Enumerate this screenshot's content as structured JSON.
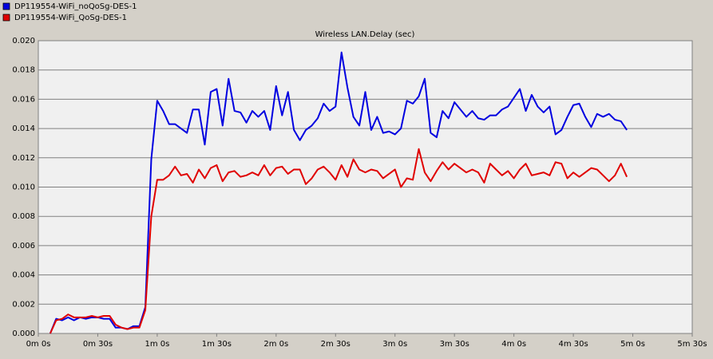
{
  "chart_data": {
    "type": "line",
    "title": "Wireless LAN.Delay (sec)",
    "x": [
      6,
      9,
      12,
      15,
      18,
      21,
      24,
      27,
      30,
      33,
      36,
      39,
      42,
      45,
      48,
      51,
      54,
      57,
      60,
      63,
      66,
      69,
      72,
      75,
      78,
      81,
      84,
      87,
      90,
      93,
      96,
      99,
      102,
      105,
      108,
      111,
      114,
      117,
      120,
      123,
      126,
      129,
      132,
      135,
      138,
      141,
      144,
      147,
      150,
      153,
      156,
      159,
      162,
      165,
      168,
      171,
      174,
      177,
      180,
      183,
      186,
      189,
      192,
      195,
      198,
      201,
      204,
      207,
      210,
      213,
      216,
      219,
      222,
      225,
      228,
      231,
      234,
      237,
      240,
      243,
      246,
      249,
      252,
      255,
      258,
      261,
      264,
      267,
      270,
      273,
      276,
      279,
      282,
      285,
      288,
      291,
      294,
      297
    ],
    "series": [
      {
        "name": "DP119554-WiFi_noQoSg-DES-1",
        "color": "#0000e0",
        "values": [
          0.0,
          0.001,
          0.0009,
          0.0011,
          0.0009,
          0.0011,
          0.001,
          0.0011,
          0.0011,
          0.001,
          0.001,
          0.0004,
          0.0004,
          0.0003,
          0.0005,
          0.0005,
          0.0018,
          0.0119,
          0.0159,
          0.0152,
          0.0143,
          0.0143,
          0.014,
          0.0137,
          0.0153,
          0.0153,
          0.0129,
          0.0165,
          0.0167,
          0.0142,
          0.0174,
          0.0152,
          0.0151,
          0.0144,
          0.0152,
          0.0148,
          0.0152,
          0.0139,
          0.0169,
          0.0149,
          0.0165,
          0.0139,
          0.0132,
          0.0139,
          0.0142,
          0.0147,
          0.0157,
          0.0152,
          0.0155,
          0.0192,
          0.0168,
          0.0148,
          0.0142,
          0.0165,
          0.0139,
          0.0148,
          0.0137,
          0.0138,
          0.0136,
          0.014,
          0.0159,
          0.0157,
          0.0162,
          0.0174,
          0.0137,
          0.0134,
          0.0152,
          0.0147,
          0.0158,
          0.0153,
          0.0148,
          0.0152,
          0.0147,
          0.0146,
          0.0149,
          0.0149,
          0.0153,
          0.0155,
          0.0161,
          0.0167,
          0.0152,
          0.0163,
          0.0155,
          0.0151,
          0.0155,
          0.0136,
          0.0139,
          0.0148,
          0.0156,
          0.0157,
          0.0148,
          0.0141,
          0.015,
          0.0148,
          0.015,
          0.0146,
          0.0145,
          0.0139
        ]
      },
      {
        "name": "DP119554-WiFi_QoSg-DES-1",
        "color": "#e00000",
        "values": [
          0.0,
          0.0009,
          0.001,
          0.0013,
          0.0011,
          0.0011,
          0.0011,
          0.0012,
          0.0011,
          0.0012,
          0.0012,
          0.0006,
          0.0004,
          0.0003,
          0.0004,
          0.0004,
          0.0016,
          0.008,
          0.0105,
          0.0105,
          0.0108,
          0.0114,
          0.0108,
          0.0109,
          0.0103,
          0.0112,
          0.0106,
          0.0113,
          0.0115,
          0.0104,
          0.011,
          0.0111,
          0.0107,
          0.0108,
          0.011,
          0.0108,
          0.0115,
          0.0108,
          0.0113,
          0.0114,
          0.0109,
          0.0112,
          0.0112,
          0.0102,
          0.0106,
          0.0112,
          0.0114,
          0.011,
          0.0105,
          0.0115,
          0.0107,
          0.0119,
          0.0112,
          0.011,
          0.0112,
          0.0111,
          0.0106,
          0.0109,
          0.0112,
          0.01,
          0.0106,
          0.0105,
          0.0126,
          0.011,
          0.0104,
          0.0111,
          0.0117,
          0.0112,
          0.0116,
          0.0113,
          0.011,
          0.0112,
          0.011,
          0.0103,
          0.0116,
          0.0112,
          0.0108,
          0.0111,
          0.0106,
          0.0112,
          0.0116,
          0.0108,
          0.0109,
          0.011,
          0.0108,
          0.0117,
          0.0116,
          0.0106,
          0.011,
          0.0107,
          0.011,
          0.0113,
          0.0112,
          0.0108,
          0.0104,
          0.0108,
          0.0116,
          0.0107
        ]
      }
    ],
    "xlim": [
      0,
      330
    ],
    "xticks": [
      {
        "value": 0,
        "label": "0m 0s"
      },
      {
        "value": 30,
        "label": "0m 30s"
      },
      {
        "value": 60,
        "label": "1m 0s"
      },
      {
        "value": 90,
        "label": "1m 30s"
      },
      {
        "value": 120,
        "label": "2m 0s"
      },
      {
        "value": 150,
        "label": "2m 30s"
      },
      {
        "value": 180,
        "label": "3m 0s"
      },
      {
        "value": 210,
        "label": "3m 30s"
      },
      {
        "value": 240,
        "label": "4m 0s"
      },
      {
        "value": 270,
        "label": "4m 30s"
      },
      {
        "value": 300,
        "label": "5m 0s"
      },
      {
        "value": 330,
        "label": "5m 30s"
      }
    ],
    "ylim": [
      0,
      0.02
    ],
    "yticks": [
      {
        "value": 0,
        "label": "0.000"
      },
      {
        "value": 0.002,
        "label": "0.002"
      },
      {
        "value": 0.004,
        "label": "0.004"
      },
      {
        "value": 0.006,
        "label": "0.006"
      },
      {
        "value": 0.008,
        "label": "0.008"
      },
      {
        "value": 0.01,
        "label": "0.010"
      },
      {
        "value": 0.012,
        "label": "0.012"
      },
      {
        "value": 0.014,
        "label": "0.014"
      },
      {
        "value": 0.016,
        "label": "0.016"
      },
      {
        "value": 0.018,
        "label": "0.018"
      },
      {
        "value": 0.02,
        "label": "0.020"
      }
    ],
    "grid": true,
    "legend": "top-left"
  }
}
